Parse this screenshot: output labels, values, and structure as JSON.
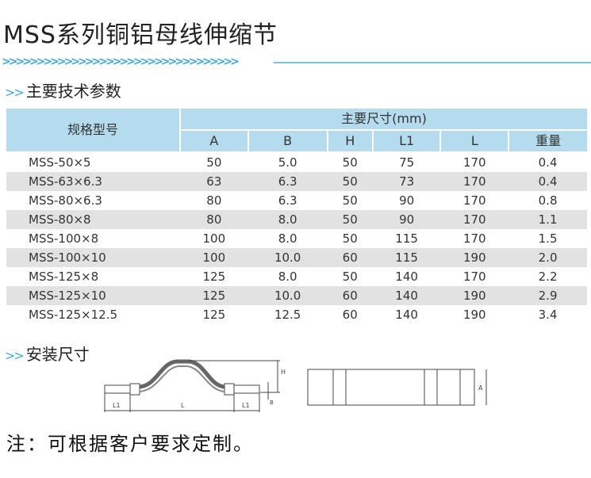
{
  "title": "MSS系列铜铝母线伸缩节",
  "divider_chevrons": ">>>>>>>>>>>>>>>>>>>>>>>>>>>>>>>>>>",
  "section1": {
    "chevrons": ">>",
    "label": "主要技术参数"
  },
  "table": {
    "spec_header": "规格型号",
    "group_header": "主要尺寸(mm)",
    "columns": [
      "A",
      "B",
      "H",
      "L1",
      "L",
      "重量"
    ],
    "rows": [
      {
        "spec": "MSS-50×5",
        "values": [
          "50",
          "5.0",
          "50",
          "75",
          "170",
          "0.4"
        ]
      },
      {
        "spec": "MSS-63×6.3",
        "values": [
          "63",
          "6.3",
          "50",
          "73",
          "170",
          "0.4"
        ]
      },
      {
        "spec": "MSS-80×6.3",
        "values": [
          "80",
          "6.3",
          "50",
          "90",
          "170",
          "0.8"
        ]
      },
      {
        "spec": "MSS-80×8",
        "values": [
          "80",
          "8.0",
          "50",
          "90",
          "170",
          "1.1"
        ]
      },
      {
        "spec": "MSS-100×8",
        "values": [
          "100",
          "8.0",
          "50",
          "115",
          "170",
          "1.5"
        ]
      },
      {
        "spec": "MSS-100×10",
        "values": [
          "100",
          "10.0",
          "60",
          "115",
          "190",
          "2.0"
        ]
      },
      {
        "spec": "MSS-125×8",
        "values": [
          "125",
          "8.0",
          "50",
          "140",
          "170",
          "2.2"
        ]
      },
      {
        "spec": "MSS-125×10",
        "values": [
          "125",
          "10.0",
          "60",
          "140",
          "190",
          "2.9"
        ]
      },
      {
        "spec": "MSS-125×12.5",
        "values": [
          "125",
          "12.5",
          "60",
          "140",
          "190",
          "3.4"
        ]
      }
    ]
  },
  "section2": {
    "chevrons": ">>",
    "label": "安装尺寸"
  },
  "drawing_labels": {
    "L1": "L1",
    "L": "L",
    "H": "H",
    "B": "B",
    "A": "A"
  },
  "note": "注：可根据客户要求定制。",
  "colors": {
    "accent": "#3fa9d6",
    "header_bg": "#b5dcee",
    "alt_row": "#e2e2e2"
  }
}
